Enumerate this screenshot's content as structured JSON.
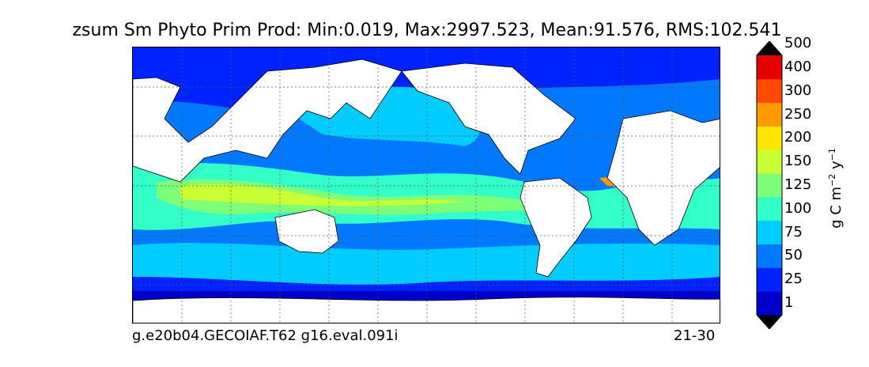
{
  "title": "zsum Sm Phyto Prim Prod: Min:0.019, Max:2997.523, Mean:91.576, RMS:102.541",
  "footer": {
    "case_name": "g.e20b04.GECOIAF.T62 g16.eval.091i",
    "years": "21-30"
  },
  "colorbar": {
    "units_main": "g C m",
    "units_exp1": "−2",
    "units_mid": " y",
    "units_exp2": "−1",
    "levels": [
      "1",
      "25",
      "50",
      "75",
      "100",
      "125",
      "150",
      "200",
      "250",
      "300",
      "400",
      "500"
    ],
    "colors": [
      "#00007f",
      "#0000c8",
      "#0022ff",
      "#0078ff",
      "#00ccff",
      "#33ffc8",
      "#7dff7a",
      "#c8ff35",
      "#ffe600",
      "#ff9900",
      "#ff4a00",
      "#e50000",
      "#7f0000"
    ]
  }
}
